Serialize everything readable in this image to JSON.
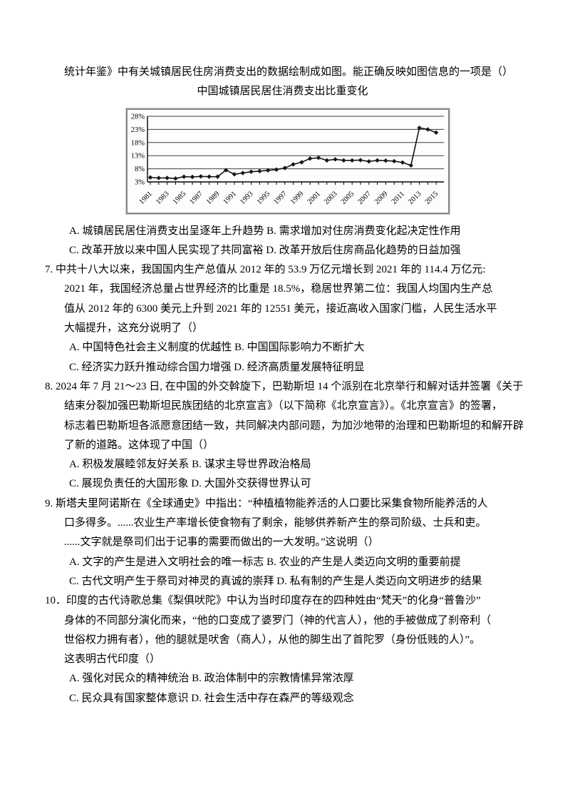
{
  "page": {
    "background": "#ffffff",
    "text_color": "#000000",
    "chart_border_color": "#8a8a8a"
  },
  "q6_tail": {
    "text": "统计年鉴》中有关城镇居民住房消费支出的数据绘制成如图。能正确反映如图信息的一项是（）",
    "option_lines": [
      "A. 城镇居民居住消费支出呈逐年上升趋势 B. 需求增加对住房消费变化起决定性作用",
      "C. 改革开放以来中国人民实现了共同富裕 D. 改革开放后住房商品化趋势的日益加强"
    ]
  },
  "chart_data": {
    "type": "line",
    "title": "中国城镇居民居住消费支出比重变化",
    "x": [
      1981,
      1982,
      1983,
      1984,
      1985,
      1986,
      1987,
      1988,
      1989,
      1990,
      1991,
      1992,
      1993,
      1994,
      1995,
      1996,
      1997,
      1998,
      1999,
      2000,
      2001,
      2002,
      2003,
      2004,
      2005,
      2006,
      2007,
      2008,
      2009,
      2010,
      2011,
      2012,
      2013,
      2014,
      2015
    ],
    "values": [
      4.7,
      4.5,
      4.5,
      4.3,
      5.0,
      4.9,
      5.1,
      5.0,
      5.0,
      7.5,
      5.9,
      6.4,
      6.9,
      7.1,
      7.4,
      7.7,
      8.3,
      9.7,
      10.5,
      11.9,
      12.2,
      11.2,
      11.6,
      11.2,
      11.2,
      11.3,
      10.8,
      11.2,
      11.1,
      10.9,
      10.4,
      9.3,
      23.6,
      23.0,
      21.8
    ],
    "xlabel": "",
    "ylabel": "",
    "ylim": [
      3,
      28
    ],
    "yticks": [
      3,
      8,
      13,
      18,
      23,
      28
    ],
    "ytick_suffix": "%",
    "xtick_labels": [
      "1981",
      "1983",
      "1985",
      "1987",
      "1989",
      "1991",
      "1993",
      "1995",
      "1997",
      "1999",
      "2001",
      "2003",
      "2005",
      "2007",
      "2009",
      "2011",
      "2013",
      "2015"
    ],
    "grid": true,
    "legend": false,
    "marker": "diamond",
    "line_color": "#141414",
    "grid_color": "#3d3d3d"
  },
  "questions": [
    {
      "id": "7",
      "lines": [
        "7. 中共十八大以来，我国国内生产总值从 2012 年的 53.9 万亿元增长到 2021 年的 114.4 万亿元:",
        "2021 年，我国经济总量占世界经济的比重是 18.5%，稳居世界第二位：我国人均国内生产总",
        "值从 2012 年的 6300 美元上升到 2021 年的 12551 美元，接近高收入国家门槛，人民生活水平",
        "大幅提升，这充分说明了（）"
      ],
      "option_lines": [
        "A. 中国特色社会主义制度的优越性 B. 中国国际影响力不断扩大",
        "C. 经济实力跃升推动综合国力增强 D. 经济高质量发展特征明显"
      ]
    },
    {
      "id": "8",
      "lines": [
        "8. 2024 年 7 月 21～23 日, 在中国的外交斡旋下，巴勒斯坦 14 个派别在北京举行和解对话并签署《关于",
        "结束分裂加强巴勒斯坦民族团结的北京宣言》（以下简称《北京宣言》）。《北京宣言》的签署，",
        "标志着巴勒斯坦各派愿意团结一致，共同解决内部问题，为加沙地带的治理和巴勒斯坦的和解开辟",
        "了新的道路。这体现了中国（）"
      ],
      "option_lines": [
        "A. 积极发展睦邻友好关系 B. 谋求主导世界政治格局",
        "C. 展现负责任的大国形象 D. 大国外交获得世界认可"
      ]
    },
    {
      "id": "9",
      "lines": [
        "9. 斯塔夫里阿诺斯在《全球通史》中指出：“种植植物能养活的人口要比采集食物所能养活的人",
        "口多得多。......农业生产率增长使食物有了剩余，能够供养新产生的祭司阶级、士兵和吏。",
        "......文字就是祭司们出于记事的需要而做出的一大发明。”这说明（）"
      ],
      "option_lines": [
        "A. 文字的产生是进入文明社会的唯一标志 B. 农业的产生是人类迈向文明的重要前提",
        "C. 古代文明产生于祭司对神灵的真诚的崇拜 D. 私有制的产生是人类迈向文明进步的结果"
      ]
    },
    {
      "id": "10",
      "lines": [
        "10．印度的古代诗歌总集《梨俱吠陀》中认为当时印度存在的四种姓由“梵天”的化身“普鲁沙”",
        "身体的不同部分演化而来，“他的口变成了婆罗门（神的代言人），他的手被做成了刹帝利（",
        "世俗权力拥有者），他的腿就是吠舍（商人），从他的脚生出了首陀罗（身份低贱的人）”。",
        "这表明古代印度（）"
      ],
      "option_lines": [
        "A. 强化对民众的精神统治 B. 政治体制中的宗教情愫异常浓厚",
        "C. 民众具有国家整体意识 D. 社会生活中存在森严的等级观念"
      ]
    }
  ]
}
